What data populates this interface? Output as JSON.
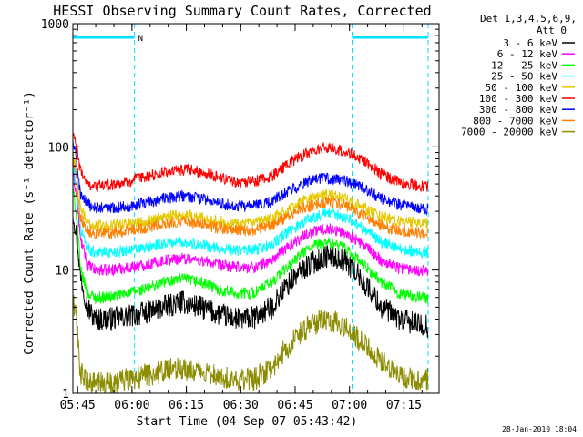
{
  "chart_data": {
    "type": "line",
    "title": "HESSI Observing Summary Count Rates, Corrected",
    "xlabel": "Start Time (04-Sep-07 05:43:42)",
    "ylabel": "Corrected Count Rate (s⁻¹ detector⁻¹)",
    "yscale": "log",
    "ylim": [
      1,
      1000
    ],
    "xlim_minutes_after_start": [
      0,
      101
    ],
    "x_ticks": [
      {
        "label": "05:45",
        "minutes": 1.3
      },
      {
        "label": "06:00",
        "minutes": 16.3
      },
      {
        "label": "06:15",
        "minutes": 31.3
      },
      {
        "label": "06:30",
        "minutes": 46.3
      },
      {
        "label": "06:45",
        "minutes": 61.3
      },
      {
        "label": "07:00",
        "minutes": 76.3
      },
      {
        "label": "07:15",
        "minutes": 91.3
      }
    ],
    "y_ticks": [
      {
        "label": "1",
        "value": 1
      },
      {
        "label": "10",
        "value": 10
      },
      {
        "label": "100",
        "value": 100
      },
      {
        "label": "1000",
        "value": 1000
      }
    ],
    "legend_header": [
      "Det 1,3,4,5,6,9,",
      "Att 0"
    ],
    "legend_position": "right",
    "annotations": {
      "night_bars": [
        {
          "from_min": 0,
          "to_min": 17,
          "label": "N"
        },
        {
          "from_min": 77,
          "to_min": 98,
          "label": ""
        }
      ],
      "vertical_dashed_min": [
        0,
        17,
        77,
        98
      ]
    },
    "series": [
      {
        "name": "3 - 6 keV",
        "color": "#000000",
        "x": [
          0,
          2,
          4,
          6,
          10,
          15,
          20,
          25,
          30,
          35,
          40,
          45,
          50,
          55,
          60,
          65,
          70,
          75,
          80,
          85,
          90,
          95,
          98
        ],
        "y": [
          30,
          9,
          5,
          4,
          4,
          4.2,
          4.5,
          5,
          5.5,
          5,
          4.4,
          4,
          4.1,
          5,
          8,
          11,
          13,
          12,
          8,
          5,
          4,
          3.6,
          3.5
        ]
      },
      {
        "name": "6 - 12 keV",
        "color": "#ff00ff",
        "x": [
          0,
          2,
          4,
          6,
          10,
          15,
          20,
          25,
          30,
          35,
          40,
          45,
          50,
          55,
          60,
          65,
          70,
          75,
          80,
          85,
          90,
          95,
          98
        ],
        "y": [
          60,
          18,
          11,
          10,
          10,
          10.5,
          11,
          12,
          12.5,
          12,
          11,
          10.5,
          10.5,
          12,
          16,
          20,
          22,
          20,
          16,
          12,
          10.5,
          10,
          10
        ]
      },
      {
        "name": "12 - 25 keV",
        "color": "#00ff00",
        "x": [
          0,
          2,
          4,
          6,
          10,
          15,
          20,
          25,
          30,
          35,
          40,
          45,
          50,
          55,
          60,
          65,
          70,
          75,
          80,
          85,
          90,
          95,
          98
        ],
        "y": [
          45,
          10,
          6.5,
          6,
          6,
          6.5,
          7,
          8,
          8.5,
          8,
          7,
          6.5,
          6.5,
          8,
          11,
          15,
          17,
          15,
          11,
          8,
          6.5,
          6,
          6
        ]
      },
      {
        "name": "25 - 50 keV",
        "color": "#00ffff",
        "x": [
          0,
          2,
          4,
          6,
          10,
          15,
          20,
          25,
          30,
          35,
          40,
          45,
          50,
          55,
          60,
          65,
          70,
          75,
          80,
          85,
          90,
          95,
          98
        ],
        "y": [
          70,
          22,
          15,
          14,
          14,
          14.5,
          15,
          16.5,
          17,
          16,
          15,
          14.5,
          14.5,
          16,
          21,
          26,
          29,
          27,
          22,
          17,
          15,
          14,
          14
        ]
      },
      {
        "name": "50 - 100 keV",
        "color": "#e6c800",
        "x": [
          0,
          2,
          4,
          6,
          10,
          15,
          20,
          25,
          30,
          35,
          40,
          45,
          50,
          55,
          60,
          65,
          70,
          75,
          80,
          85,
          90,
          95,
          98
        ],
        "y": [
          90,
          32,
          24,
          23,
          23,
          24,
          25,
          27,
          28,
          27,
          25,
          24,
          24,
          26,
          32,
          38,
          41,
          38,
          32,
          27,
          25,
          24,
          24
        ]
      },
      {
        "name": "100 - 300 keV",
        "color": "#ff0000",
        "x": [
          0,
          2,
          4,
          6,
          10,
          15,
          20,
          25,
          30,
          35,
          40,
          45,
          50,
          55,
          60,
          65,
          70,
          75,
          80,
          85,
          90,
          95,
          98
        ],
        "y": [
          130,
          65,
          50,
          48,
          49,
          52,
          57,
          62,
          65,
          63,
          57,
          52,
          52,
          58,
          75,
          90,
          98,
          92,
          78,
          60,
          52,
          48,
          47
        ]
      },
      {
        "name": "300 - 800 keV",
        "color": "#0000ff",
        "x": [
          0,
          2,
          4,
          6,
          10,
          15,
          20,
          25,
          30,
          35,
          40,
          45,
          50,
          55,
          60,
          65,
          70,
          75,
          80,
          85,
          90,
          95,
          98
        ],
        "y": [
          110,
          42,
          34,
          32,
          32,
          33,
          35,
          38,
          40,
          38,
          35,
          33,
          33,
          36,
          45,
          52,
          56,
          53,
          46,
          38,
          34,
          32,
          31
        ]
      },
      {
        "name": "800 - 7000 keV",
        "color": "#ff8000",
        "x": [
          0,
          2,
          4,
          6,
          10,
          15,
          20,
          25,
          30,
          35,
          40,
          45,
          50,
          55,
          60,
          65,
          70,
          75,
          80,
          85,
          90,
          95,
          98
        ],
        "y": [
          85,
          27,
          21,
          20,
          20,
          21,
          22,
          24,
          25,
          24,
          22,
          21,
          21,
          23,
          28,
          33,
          36,
          34,
          28,
          23,
          21,
          20,
          19
        ]
      },
      {
        "name": "7000 - 20000 keV",
        "color": "#8c8c00",
        "x": [
          0,
          2,
          4,
          6,
          10,
          15,
          20,
          25,
          30,
          35,
          40,
          45,
          50,
          55,
          60,
          65,
          70,
          75,
          80,
          85,
          90,
          95,
          98
        ],
        "y": [
          6,
          1.5,
          1.2,
          1.2,
          1.2,
          1.3,
          1.4,
          1.5,
          1.6,
          1.5,
          1.4,
          1.3,
          1.3,
          1.6,
          2.5,
          3.5,
          4,
          3.5,
          2.5,
          1.8,
          1.4,
          1.3,
          1.3
        ]
      }
    ]
  },
  "footer": {
    "date_stamp": "28-Jan-2010 18:04"
  }
}
